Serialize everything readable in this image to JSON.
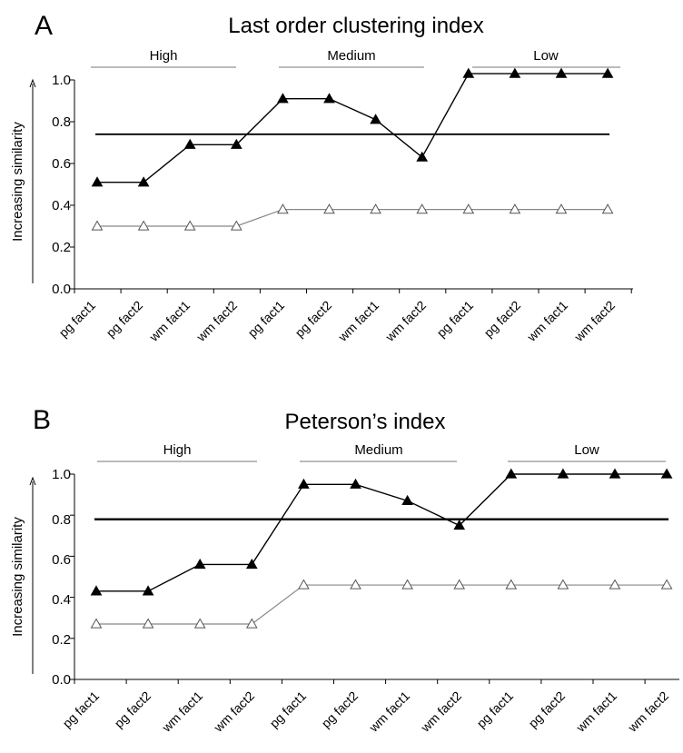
{
  "figure": {
    "panels": [
      {
        "letter": "A",
        "title": "Last order clustering index",
        "ylabel": "Increasing similarity",
        "groups": [
          "High",
          "Medium",
          "Low"
        ],
        "yticks": [
          "0.0",
          "0.2",
          "0.4",
          "0.6",
          "0.8",
          "1.0"
        ]
      },
      {
        "letter": "B",
        "title": "Peterson’s index",
        "ylabel": "Increasing similarity",
        "groups": [
          "High",
          "Medium",
          "Low"
        ],
        "yticks": [
          "0.0",
          "0.2",
          "0.4",
          "0.6",
          "0.8",
          "1.0"
        ]
      }
    ]
  },
  "chart_data": [
    {
      "type": "line",
      "title": "Last order clustering index",
      "ylabel": "Increasing similarity",
      "xlabel": "",
      "categories": [
        "pg fact1",
        "pg fact2",
        "wm fact1",
        "wm fact2",
        "pg fact1",
        "pg fact2",
        "wm fact1",
        "wm fact2",
        "pg fact1",
        "pg fact2",
        "wm fact1",
        "wm fact2"
      ],
      "groups": [
        {
          "label": "High",
          "from": 0,
          "to": 3
        },
        {
          "label": "Medium",
          "from": 4,
          "to": 7
        },
        {
          "label": "Low",
          "from": 8,
          "to": 11
        }
      ],
      "series": [
        {
          "marker": "filled-triangle",
          "values": [
            0.51,
            0.51,
            0.69,
            0.69,
            0.91,
            0.91,
            0.81,
            0.63,
            1.03,
            1.03,
            1.03,
            1.03
          ]
        },
        {
          "marker": "open-triangle",
          "values": [
            0.3,
            0.3,
            0.3,
            0.3,
            0.38,
            0.38,
            0.38,
            0.38,
            0.38,
            0.38,
            0.38,
            0.38
          ]
        }
      ],
      "reference_line": 0.74,
      "ylim": [
        0,
        1.0
      ],
      "yticks": [
        0,
        0.2,
        0.4,
        0.6,
        0.8,
        1.0
      ],
      "grid": false,
      "colors": {
        "filled": "#000000",
        "open": "#ffffff",
        "open_line": "#888888",
        "reference": "#000000"
      }
    },
    {
      "type": "line",
      "title": "Peterson’s index",
      "ylabel": "Increasing similarity",
      "xlabel": "",
      "categories": [
        "pg fact1",
        "pg fact2",
        "wm fact1",
        "wm fact2",
        "pg fact1",
        "pg fact2",
        "wm fact1",
        "wm fact2",
        "pg fact1",
        "pg fact2",
        "wm fact1",
        "wm fact2"
      ],
      "groups": [
        {
          "label": "High",
          "from": 0,
          "to": 3
        },
        {
          "label": "Medium",
          "from": 4,
          "to": 7
        },
        {
          "label": "Low",
          "from": 8,
          "to": 11
        }
      ],
      "series": [
        {
          "marker": "filled-triangle",
          "values": [
            0.43,
            0.43,
            0.56,
            0.56,
            0.95,
            0.95,
            0.87,
            0.75,
            1.0,
            1.0,
            1.0,
            1.0
          ]
        },
        {
          "marker": "open-triangle",
          "values": [
            0.27,
            0.27,
            0.27,
            0.27,
            0.46,
            0.46,
            0.46,
            0.46,
            0.46,
            0.46,
            0.46,
            0.46
          ]
        }
      ],
      "reference_line": 0.78,
      "ylim": [
        0,
        1.0
      ],
      "yticks": [
        0,
        0.2,
        0.4,
        0.6,
        0.8,
        1.0
      ],
      "grid": false,
      "colors": {
        "filled": "#000000",
        "open": "#ffffff",
        "open_line": "#888888",
        "reference": "#000000"
      }
    }
  ]
}
